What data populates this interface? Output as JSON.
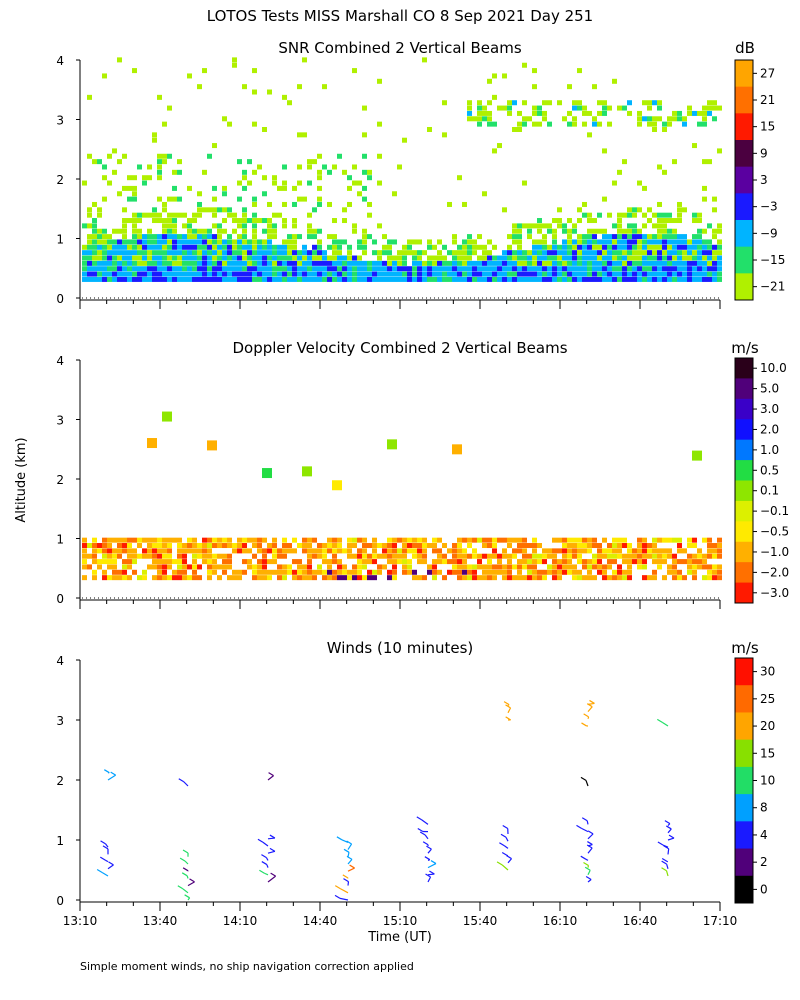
{
  "figure_title": "LOTOS Tests MISS Marshall CO   8 Sep 2021 Day 251",
  "footnote": "Simple moment winds, no ship navigation correction applied",
  "shared_axes": {
    "ylabel": "Altitude (km)",
    "xlabel": "Time (UT)",
    "x_ticks": [
      "13:10",
      "13:40",
      "14:10",
      "14:40",
      "15:10",
      "15:40",
      "16:10",
      "16:40",
      "17:10"
    ],
    "y_ticks": [
      "0",
      "1",
      "2",
      "3",
      "4"
    ],
    "ylim": [
      0,
      4
    ]
  },
  "chart_data": [
    {
      "type": "heatmap",
      "title": "SNR Combined 2 Vertical Beams",
      "unit": "dB",
      "colorbar_labels": [
        "27",
        "21",
        "15",
        "9",
        "3",
        "−3",
        "−9",
        "−15",
        "−21"
      ],
      "colorbar_colors": [
        "#ffa500",
        "#ff7000",
        "#ff1a00",
        "#4b0040",
        "#5a00a0",
        "#1a1aff",
        "#00b4ff",
        "#22e06a",
        "#b0f000"
      ],
      "xlim": [
        "13:10",
        "17:10"
      ],
      "ylim": [
        0,
        4
      ]
    },
    {
      "type": "heatmap",
      "title": "Doppler Velocity Combined 2 Vertical Beams",
      "unit": "m/s",
      "colorbar_labels": [
        "10.0",
        "5.0",
        "3.0",
        "2.0",
        "1.0",
        "0.5",
        "0.1",
        "−0.1",
        "−0.5",
        "−1.0",
        "−2.0",
        "−3.0"
      ],
      "colorbar_colors": [
        "#2a001a",
        "#50007a",
        "#3a00c8",
        "#1010ff",
        "#0078ff",
        "#22dd44",
        "#8ee600",
        "#dcf000",
        "#ffea00",
        "#ffb000",
        "#ff7000",
        "#ff1a00"
      ],
      "xlim": [
        "13:10",
        "17:10"
      ],
      "ylim": [
        0,
        4
      ]
    },
    {
      "type": "scatter",
      "title": "Winds (10 minutes)",
      "unit": "m/s",
      "colorbar_labels": [
        "30",
        "25",
        "20",
        "15",
        "10",
        "8",
        "4",
        "2",
        "0"
      ],
      "colorbar_colors": [
        "#ff1000",
        "#ff6a00",
        "#ffa500",
        "#88e000",
        "#22dd66",
        "#00a0ff",
        "#1a1aff",
        "#50007a",
        "#000000"
      ],
      "xlim": [
        "13:10",
        "17:10"
      ],
      "ylim": [
        0,
        4
      ]
    }
  ]
}
